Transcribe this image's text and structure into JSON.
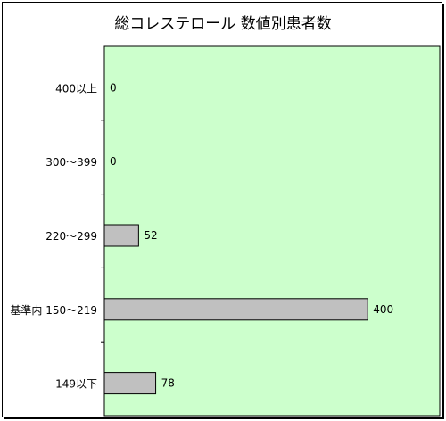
{
  "chart_data": {
    "type": "bar",
    "orientation": "horizontal",
    "title": "総コレステロール 数値別患者数",
    "categories": [
      "400以上",
      "300～399",
      "220～299",
      "基準内 150～219",
      "149以下"
    ],
    "values": [
      0,
      0,
      52,
      400,
      78
    ],
    "data_labels": [
      "0",
      "0",
      "52",
      "400",
      "78"
    ],
    "xlim": [
      0,
      500
    ],
    "grid": false,
    "legend": "none",
    "colors": {
      "plot_background": "#ccffcc",
      "bar_fill": "#c0c0c0",
      "bar_stroke": "#000000"
    }
  }
}
